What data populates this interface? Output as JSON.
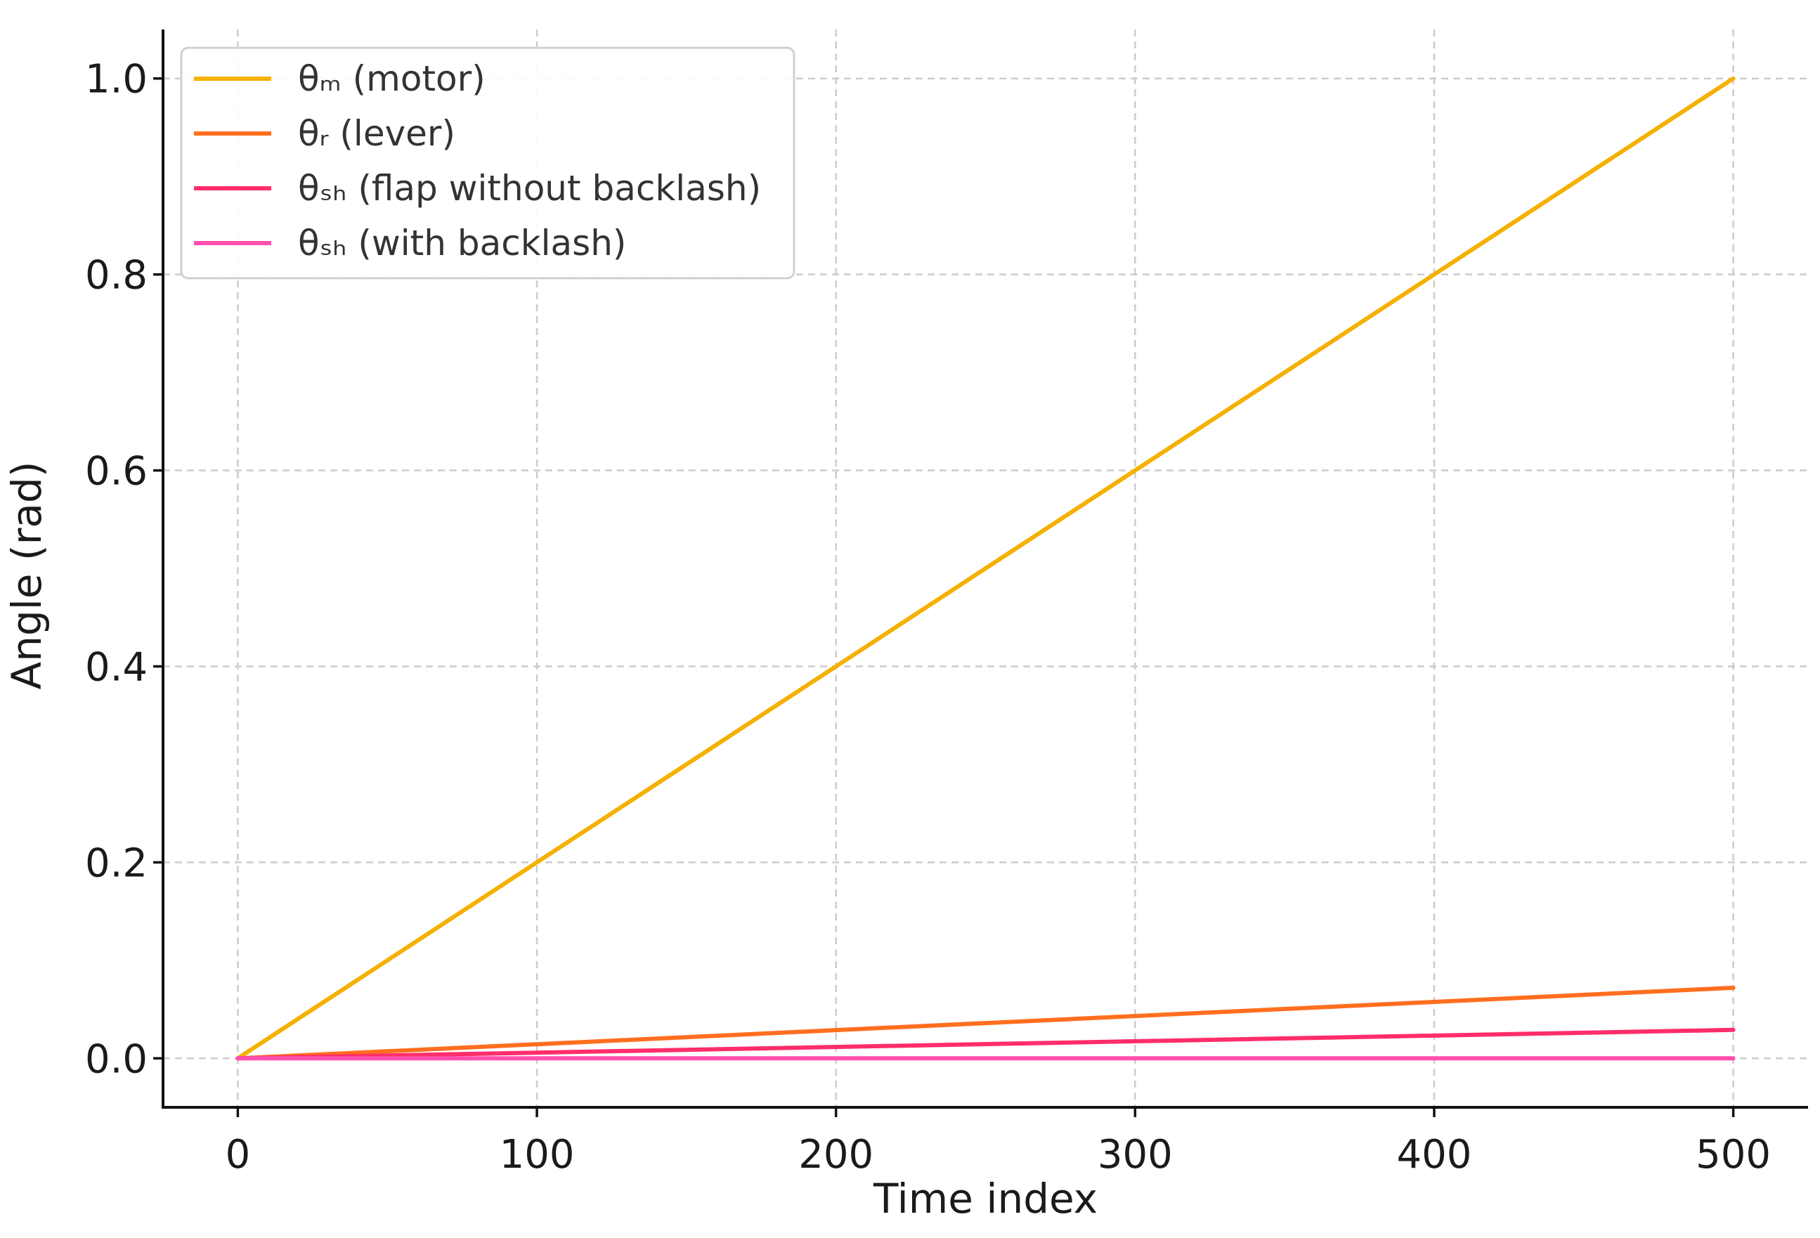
{
  "chart_data": {
    "type": "line",
    "title": "",
    "xlabel": "Time index",
    "ylabel": "Angle (rad)",
    "xlim": [
      -25,
      525
    ],
    "ylim": [
      -0.05,
      1.05
    ],
    "xticks": [
      0,
      100,
      200,
      300,
      400,
      500
    ],
    "xtick_labels": [
      "0",
      "100",
      "200",
      "300",
      "400",
      "500"
    ],
    "yticks": [
      0.0,
      0.2,
      0.4,
      0.6,
      0.8,
      1.0
    ],
    "ytick_labels": [
      "0.0",
      "0.2",
      "0.4",
      "0.6",
      "0.8",
      "1.0"
    ],
    "grid": true,
    "legend_position": "top-left",
    "series": [
      {
        "name": "θₘ (motor)",
        "color": "#f5b000",
        "x": [
          0,
          500
        ],
        "y": [
          0.0,
          1.0
        ]
      },
      {
        "name": "θᵣ (lever)",
        "color": "#ff6f1f",
        "x": [
          0,
          500
        ],
        "y": [
          0.0,
          0.072
        ]
      },
      {
        "name": "θₛₕ (flap without backlash)",
        "color": "#ff2d6b",
        "x": [
          0,
          500
        ],
        "y": [
          0.0,
          0.029
        ]
      },
      {
        "name": "θₛₕ (with backlash)",
        "color": "#ff4fb0",
        "x": [
          0,
          500
        ],
        "y": [
          0.0,
          0.0
        ]
      }
    ]
  }
}
